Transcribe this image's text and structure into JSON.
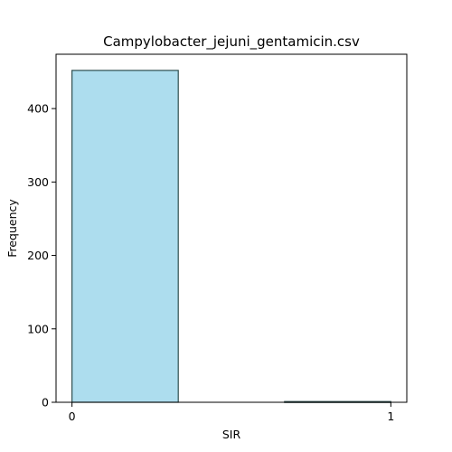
{
  "chart_data": {
    "type": "bar",
    "title": "Campylobacter_jejuni_gentamicin.csv",
    "xlabel": "SIR",
    "ylabel": "Frequency",
    "bins": [
      {
        "start": 0.0,
        "end": 0.3333,
        "value": 452
      },
      {
        "start": 0.3333,
        "end": 0.6667,
        "value": 0
      },
      {
        "start": 0.6667,
        "end": 1.0,
        "value": 1
      }
    ],
    "xlim": [
      -0.05,
      1.05
    ],
    "ylim": [
      0,
      474
    ],
    "xticks": [
      0,
      1
    ],
    "yticks": [
      0,
      100,
      200,
      300,
      400
    ],
    "bar_color": "#ADDDEE",
    "edge_color": "#2f4f4f",
    "grid": false,
    "legend": "none"
  }
}
